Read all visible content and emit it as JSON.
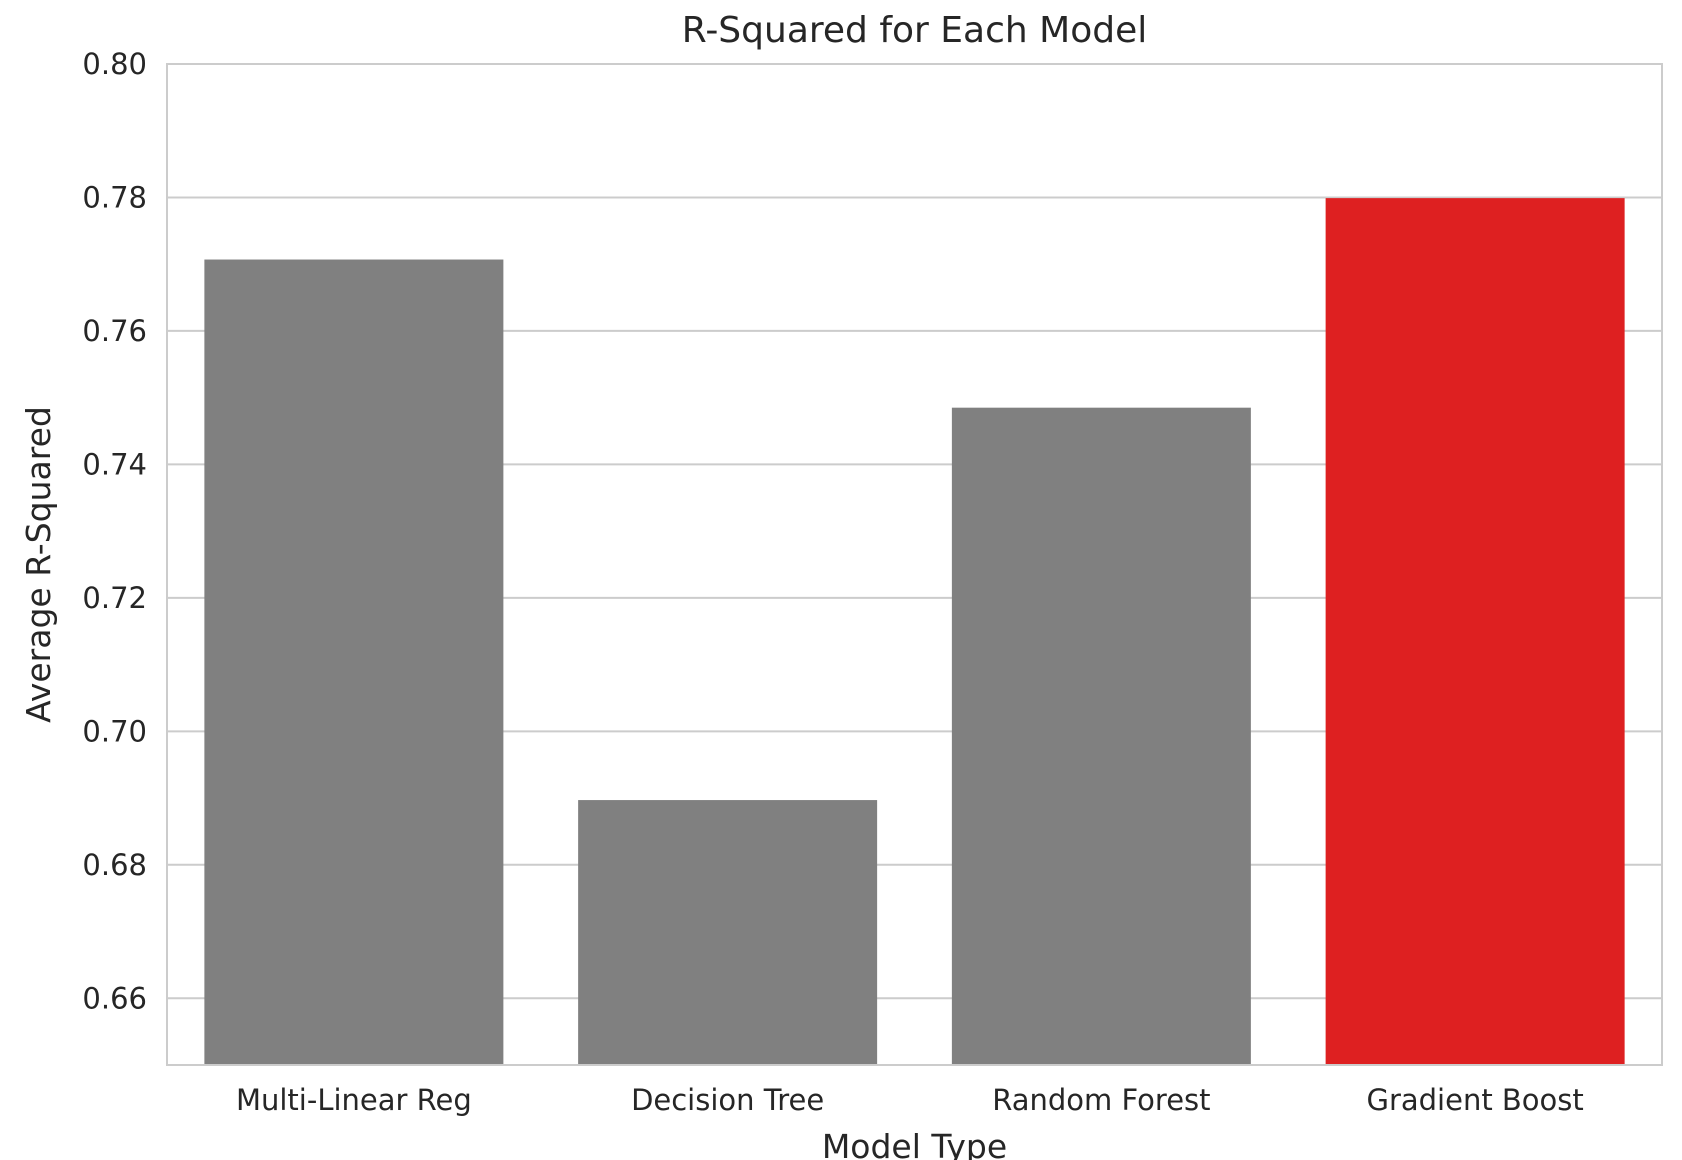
{
  "chart_data": {
    "type": "bar",
    "title": "R-Squared for Each Model",
    "xlabel": "Model Type",
    "ylabel": "Average R-Squared",
    "categories": [
      "Multi-Linear Reg",
      "Decision Tree",
      "Random Forest",
      "Gradient Boost"
    ],
    "values": [
      0.7707,
      0.6897,
      0.7485,
      0.7799
    ],
    "bar_colors": [
      "#808080",
      "#808080",
      "#808080",
      "#de2021"
    ],
    "ylim": [
      0.65,
      0.8
    ],
    "yticks": [
      0.66,
      0.68,
      0.7,
      0.72,
      0.74,
      0.76,
      0.78,
      0.8
    ],
    "ytick_labels": [
      "0.66",
      "0.68",
      "0.70",
      "0.72",
      "0.74",
      "0.76",
      "0.78",
      "0.80"
    ],
    "grid": "horizontal",
    "legend": "none"
  },
  "colors": {
    "grid": "#cccccc",
    "text": "#262626",
    "background": "#ffffff"
  }
}
